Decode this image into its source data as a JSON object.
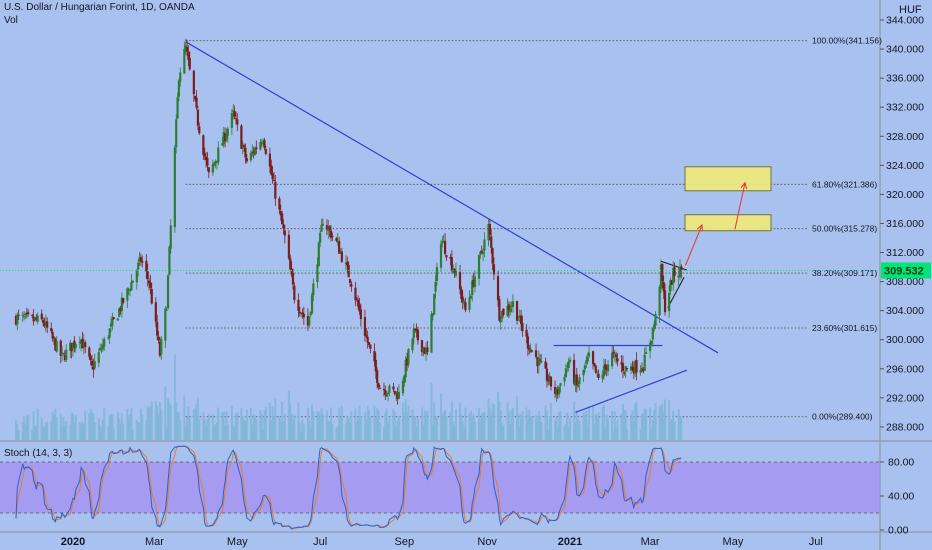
{
  "header": {
    "title": "U.S. Dollar / Hungarian Forint, 1D, OANDA",
    "volume_label": "Vol",
    "currency": "HUF",
    "stoch_label": "Stoch (14, 3, 3)"
  },
  "colors": {
    "background": "#a9c1ef",
    "up": "#2e7d32",
    "down": "#7b1e1e",
    "trendline": "#2f3fd8",
    "fib_line": "#4a4a4a",
    "current_price_bg": "#00e676",
    "target_box": "#f2ea7a",
    "arrow": "#e5333b",
    "stoch_band": "#a48ef0",
    "stoch_k": "#2d5fd6",
    "stoch_d": "#e57f27",
    "volume": "#7fb6d6"
  },
  "chart_data": {
    "type": "candlestick",
    "symbol": "USD/HUF",
    "interval": "1D",
    "x_tick_labels": [
      "2020",
      "Mar",
      "May",
      "Jul",
      "Sep",
      "Nov",
      "2021",
      "Mar",
      "May",
      "Jul"
    ],
    "y_ticks": [
      288.0,
      292.0,
      296.0,
      300.0,
      304.0,
      308.0,
      312.0,
      316.0,
      320.0,
      324.0,
      328.0,
      332.0,
      336.0,
      340.0,
      344.0
    ],
    "y_tick_labels": [
      "288.000",
      "292.000",
      "296.000",
      "300.000",
      "304.000",
      "308.000",
      "312.000",
      "316.000",
      "320.000",
      "324.000",
      "328.000",
      "332.000",
      "336.000",
      "340.000",
      "344.000"
    ],
    "ylim": [
      286.2,
      344.0
    ],
    "current_price": 309.532,
    "current_price_label": "309.532",
    "price_path_keypoints": [
      {
        "date": "2019-11-20",
        "close": 303.0
      },
      {
        "date": "2019-12-10",
        "close": 302.5
      },
      {
        "date": "2019-12-24",
        "close": 297.5
      },
      {
        "date": "2020-01-06",
        "close": 300.5
      },
      {
        "date": "2020-01-15",
        "close": 296.0
      },
      {
        "date": "2020-02-10",
        "close": 306.5
      },
      {
        "date": "2020-02-20",
        "close": 311.0
      },
      {
        "date": "2020-02-26",
        "close": 308.0
      },
      {
        "date": "2020-03-05",
        "close": 298.0
      },
      {
        "date": "2020-03-10",
        "close": 305.0
      },
      {
        "date": "2020-03-19",
        "close": 336.5
      },
      {
        "date": "2020-03-24",
        "close": 340.2
      },
      {
        "date": "2020-04-02",
        "close": 330.0
      },
      {
        "date": "2020-04-10",
        "close": 322.5
      },
      {
        "date": "2020-04-28",
        "close": 331.0
      },
      {
        "date": "2020-05-08",
        "close": 324.5
      },
      {
        "date": "2020-05-20",
        "close": 328.0
      },
      {
        "date": "2020-06-05",
        "close": 314.0
      },
      {
        "date": "2020-06-12",
        "close": 306.0
      },
      {
        "date": "2020-06-22",
        "close": 302.0
      },
      {
        "date": "2020-07-03",
        "close": 316.5
      },
      {
        "date": "2020-07-14",
        "close": 313.0
      },
      {
        "date": "2020-07-24",
        "close": 308.0
      },
      {
        "date": "2020-08-03",
        "close": 301.0
      },
      {
        "date": "2020-08-14",
        "close": 293.5
      },
      {
        "date": "2020-08-28",
        "close": 292.5
      },
      {
        "date": "2020-09-08",
        "close": 301.0
      },
      {
        "date": "2020-09-18",
        "close": 298.0
      },
      {
        "date": "2020-09-28",
        "close": 314.0
      },
      {
        "date": "2020-10-08",
        "close": 309.5
      },
      {
        "date": "2020-10-16",
        "close": 304.0
      },
      {
        "date": "2020-10-27",
        "close": 311.5
      },
      {
        "date": "2020-11-02",
        "close": 315.5
      },
      {
        "date": "2020-11-10",
        "close": 303.5
      },
      {
        "date": "2020-11-20",
        "close": 305.0
      },
      {
        "date": "2020-12-01",
        "close": 299.5
      },
      {
        "date": "2020-12-10",
        "close": 296.5
      },
      {
        "date": "2020-12-22",
        "close": 292.5
      },
      {
        "date": "2020-12-31",
        "close": 297.0
      },
      {
        "date": "2021-01-06",
        "close": 293.5
      },
      {
        "date": "2021-01-15",
        "close": 297.5
      },
      {
        "date": "2021-01-22",
        "close": 294.5
      },
      {
        "date": "2021-02-01",
        "close": 297.8
      },
      {
        "date": "2021-02-10",
        "close": 296.0
      },
      {
        "date": "2021-02-24",
        "close": 296.5
      },
      {
        "date": "2021-03-02",
        "close": 300.5
      },
      {
        "date": "2021-03-05",
        "close": 303.0
      },
      {
        "date": "2021-03-09",
        "close": 309.5
      },
      {
        "date": "2021-03-12",
        "close": 304.5
      },
      {
        "date": "2021-03-18",
        "close": 309.0
      },
      {
        "date": "2021-03-24",
        "close": 309.532
      }
    ],
    "fibonacci_levels": [
      {
        "ratio": 1.0,
        "price": 341.156,
        "label": "100.00%(341.156)"
      },
      {
        "ratio": 0.618,
        "price": 321.386,
        "label": "61.80%(321.386)"
      },
      {
        "ratio": 0.5,
        "price": 315.278,
        "label": "50.00%(315.278)"
      },
      {
        "ratio": 0.382,
        "price": 309.171,
        "label": "38.20%(309.171)"
      },
      {
        "ratio": 0.236,
        "price": 301.615,
        "label": "23.60%(301.615)"
      },
      {
        "ratio": 0.0,
        "price": 289.4,
        "label": "0.00%(289.400)"
      }
    ],
    "drawings": {
      "descending_trendline": [
        {
          "date": "2020-03-24",
          "price": 341.0
        },
        {
          "date": "2021-04-20",
          "price": 298.2
        }
      ],
      "range_top_line": [
        {
          "date": "2020-12-20",
          "price": 299.2
        },
        {
          "date": "2021-03-10",
          "price": 299.2
        }
      ],
      "rising_support_line": [
        {
          "date": "2021-01-05",
          "price": 290.0
        },
        {
          "date": "2021-03-28",
          "price": 295.8
        }
      ],
      "pennant_upper": [
        {
          "date": "2021-03-09",
          "price": 310.8
        },
        {
          "date": "2021-03-28",
          "price": 309.6
        }
      ],
      "pennant_lower": [
        {
          "date": "2021-03-14",
          "price": 304.4
        },
        {
          "date": "2021-03-26",
          "price": 308.6
        }
      ],
      "target_zones": [
        {
          "price_low": 315.0,
          "price_high": 317.2
        },
        {
          "price_low": 320.5,
          "price_high": 323.8
        }
      ]
    },
    "stochastic": {
      "params": "Stoch (14, 3, 3)",
      "y_ticks": [
        0,
        40,
        80
      ],
      "y_tick_labels": [
        "0.00",
        "40.00",
        "80.00"
      ],
      "band": [
        20,
        80
      ],
      "ylim": [
        0,
        100
      ]
    }
  }
}
